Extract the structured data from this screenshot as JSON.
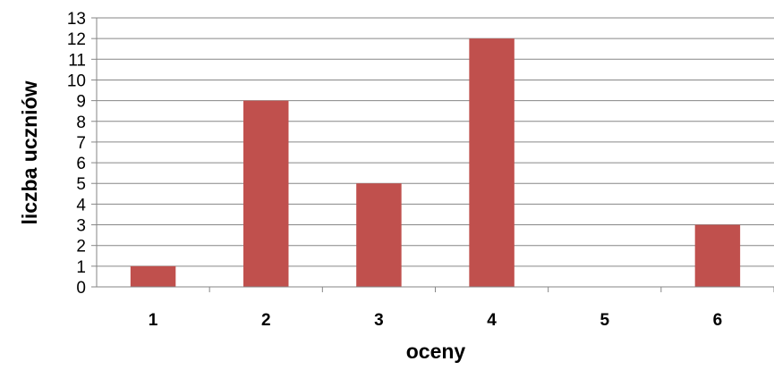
{
  "chart_data": {
    "type": "bar",
    "categories": [
      "1",
      "2",
      "3",
      "4",
      "5",
      "6"
    ],
    "values": [
      1,
      9,
      5,
      12,
      0,
      3
    ],
    "title": "",
    "xlabel": "oceny",
    "ylabel": "liczba uczniów",
    "ylim": [
      0,
      13
    ],
    "yticks": [
      "0",
      "1",
      "2",
      "3",
      "4",
      "5",
      "6",
      "7",
      "8",
      "9",
      "10",
      "11",
      "12",
      "13"
    ],
    "grid": true,
    "legend": "none",
    "bar_color": "#C0504D"
  }
}
